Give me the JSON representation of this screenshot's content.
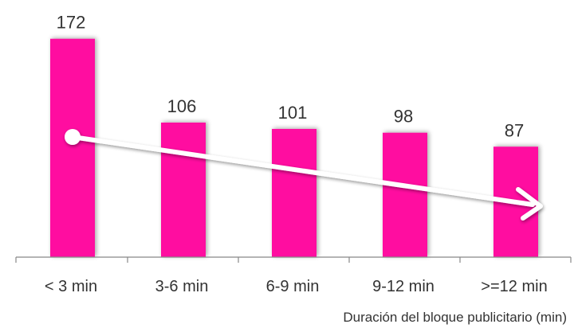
{
  "chart_data": {
    "type": "bar",
    "categories": [
      "< 3 min",
      "3-6 min",
      "6-9 min",
      "9-12 min",
      ">=12 min"
    ],
    "values": [
      172,
      106,
      101,
      98,
      87
    ],
    "title": "",
    "xlabel": "Duración del bloque publicitario (min)",
    "ylabel": "",
    "ylim": [
      0,
      185
    ],
    "grid": false,
    "legend": "none",
    "annotation": "trend-arrow-down",
    "colors": {
      "bar": "#ff0aa0",
      "axis": "#888888",
      "arrow": "#ffffff",
      "text": "#333333"
    }
  }
}
